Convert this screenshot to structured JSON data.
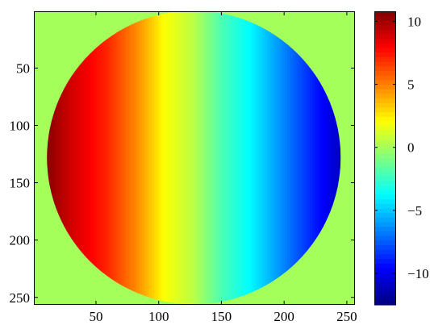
{
  "chart_data": [
    {
      "type": "heatmap",
      "title": "",
      "xlabel": "",
      "ylabel": "",
      "grid": false,
      "xlim": [
        1,
        256
      ],
      "ylim": [
        256,
        1
      ],
      "y_direction": "top-down",
      "x_ticks": [
        {
          "value": 50,
          "label": "50"
        },
        {
          "value": 100,
          "label": "100"
        },
        {
          "value": 150,
          "label": "150"
        },
        {
          "value": 200,
          "label": "200"
        },
        {
          "value": 250,
          "label": "250"
        }
      ],
      "y_ticks": [
        {
          "value": 50,
          "label": "50"
        },
        {
          "value": 100,
          "label": "100"
        },
        {
          "value": 150,
          "label": "150"
        },
        {
          "value": 200,
          "label": "200"
        },
        {
          "value": 250,
          "label": "250"
        }
      ],
      "colormap": "jet",
      "background_value": 0,
      "aperture": {
        "shape": "circle",
        "center": [
          128,
          128
        ],
        "radius": 128
      },
      "field": {
        "description_from_figure": "values vary mainly along x inside the circular aperture",
        "x_profile": [
          {
            "x": 1,
            "value": 11.5
          },
          {
            "x": 30,
            "value": 9
          },
          {
            "x": 60,
            "value": 7
          },
          {
            "x": 85,
            "value": 4.5
          },
          {
            "x": 105,
            "value": 2
          },
          {
            "x": 128,
            "value": 0.5
          },
          {
            "x": 150,
            "value": -2
          },
          {
            "x": 175,
            "value": -4
          },
          {
            "x": 200,
            "value": -6.5
          },
          {
            "x": 230,
            "value": -9.5
          },
          {
            "x": 256,
            "value": -12
          }
        ]
      }
    },
    {
      "type": "colorbar",
      "colormap": "jet",
      "range": [
        -12.5,
        10.8
      ],
      "ticks": [
        {
          "value": 10,
          "label": "10"
        },
        {
          "value": 5,
          "label": "5"
        },
        {
          "value": 0,
          "label": "0"
        },
        {
          "value": -5,
          "label": "−5"
        },
        {
          "value": -10,
          "label": "−10"
        }
      ]
    }
  ]
}
